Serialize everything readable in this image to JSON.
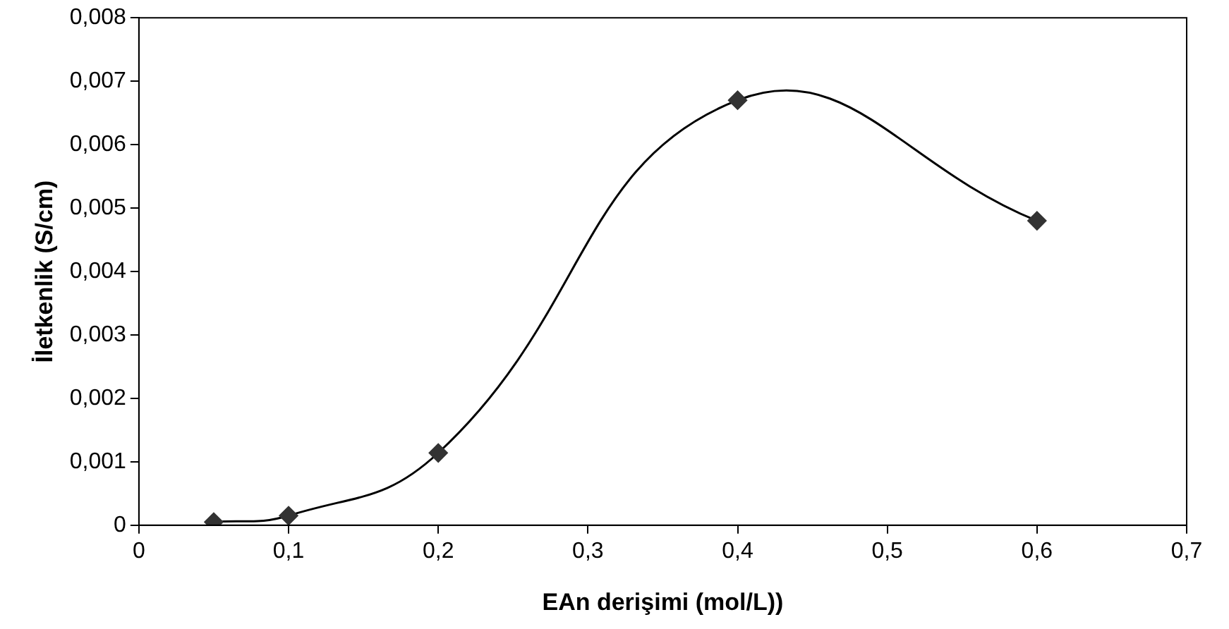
{
  "chart_data": {
    "type": "line",
    "xlabel": "EAn derişimi (mol/L))",
    "ylabel": "İletkenlik (S/cm)",
    "x": [
      0.05,
      0.1,
      0.2,
      0.4,
      0.6
    ],
    "series": [
      {
        "color": "#333333",
        "values": [
          5e-05,
          0.00015,
          0.00114,
          0.0067,
          0.0048
        ]
      }
    ],
    "marker": "diamond",
    "line_style": "solid",
    "grid": false,
    "legend": false,
    "xlim": [
      0,
      0.7
    ],
    "xticks": [
      0,
      {
        "value": 0.1,
        "label": "0,1"
      },
      {
        "value": 0.2,
        "label": "0,2"
      },
      {
        "value": 0.3,
        "label": "0,3"
      },
      {
        "value": 0.4,
        "label": "0,4"
      },
      {
        "value": 0.5,
        "label": "0,5"
      },
      {
        "value": 0.6,
        "label": "0,6"
      },
      {
        "value": 0.7,
        "label": "0,7"
      }
    ],
    "ylim": [
      0,
      0.008
    ],
    "yticks": [
      0,
      {
        "value": 0.001,
        "label": "0,001"
      },
      {
        "value": 0.002,
        "label": "0,002"
      },
      {
        "value": 0.003,
        "label": "0,003"
      },
      {
        "value": 0.004,
        "label": "0,004"
      },
      {
        "value": 0.005,
        "label": "0,005"
      },
      {
        "value": 0.006,
        "label": "0,006"
      },
      {
        "value": 0.007,
        "label": "0,007"
      },
      {
        "value": 0.008,
        "label": "0,008"
      }
    ]
  }
}
